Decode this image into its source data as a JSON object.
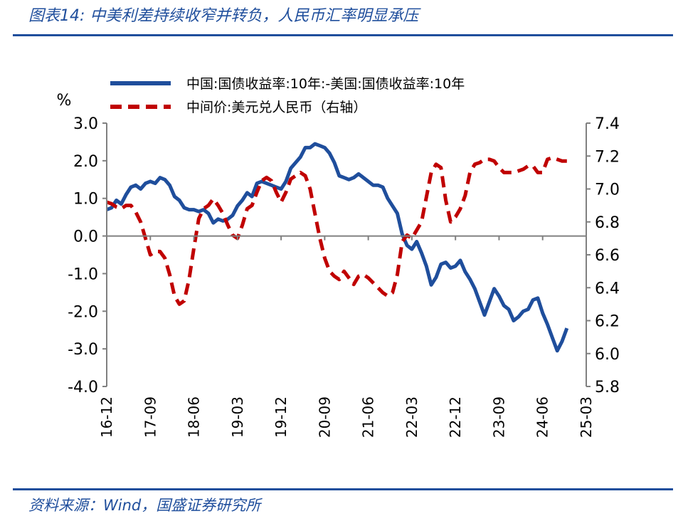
{
  "header": {
    "title": "图表14:  中美利差持续收窄并转负，人民币汇率明显承压"
  },
  "footer": {
    "source": "资料来源：Wind，国盛证券研究所"
  },
  "chart_data": {
    "type": "line",
    "left_unit": "%",
    "y_left": {
      "min": -4.0,
      "max": 3.0,
      "ticks": [
        "3.0",
        "2.0",
        "1.0",
        "0.0",
        "-1.0",
        "-2.0",
        "-3.0",
        "-4.0"
      ]
    },
    "y_right": {
      "min": 5.8,
      "max": 7.4,
      "ticks": [
        "7.4",
        "7.2",
        "7.0",
        "6.8",
        "6.6",
        "6.4",
        "6.2",
        "6.0",
        "5.8"
      ]
    },
    "x_ticks": [
      "16-12",
      "17-09",
      "18-06",
      "19-03",
      "19-12",
      "20-09",
      "21-06",
      "22-03",
      "22-12",
      "23-09",
      "24-06",
      "25-03"
    ],
    "x_range": [
      0,
      99
    ],
    "legend_position": "top",
    "series": [
      {
        "name": "中国:国债收益率:10年:-美国:国债收益率:10年",
        "axis": "left",
        "color": "#1f4e9c",
        "style": "solid",
        "points": [
          [
            0,
            0.7
          ],
          [
            1,
            0.75
          ],
          [
            2,
            0.95
          ],
          [
            3,
            0.85
          ],
          [
            4,
            1.1
          ],
          [
            5,
            1.3
          ],
          [
            6,
            1.35
          ],
          [
            7,
            1.25
          ],
          [
            8,
            1.4
          ],
          [
            9,
            1.45
          ],
          [
            10,
            1.4
          ],
          [
            11,
            1.55
          ],
          [
            12,
            1.5
          ],
          [
            13,
            1.35
          ],
          [
            14,
            1.05
          ],
          [
            15,
            0.95
          ],
          [
            16,
            0.75
          ],
          [
            17,
            0.7
          ],
          [
            18,
            0.7
          ],
          [
            19,
            0.65
          ],
          [
            20,
            0.7
          ],
          [
            21,
            0.6
          ],
          [
            22,
            0.35
          ],
          [
            23,
            0.45
          ],
          [
            24,
            0.4
          ],
          [
            25,
            0.45
          ],
          [
            26,
            0.55
          ],
          [
            27,
            0.8
          ],
          [
            28,
            0.95
          ],
          [
            29,
            1.15
          ],
          [
            30,
            1.05
          ],
          [
            31,
            1.4
          ],
          [
            32,
            1.45
          ],
          [
            33,
            1.4
          ],
          [
            34,
            1.35
          ],
          [
            35,
            1.3
          ],
          [
            36,
            1.25
          ],
          [
            37,
            1.45
          ],
          [
            38,
            1.8
          ],
          [
            39,
            1.95
          ],
          [
            40,
            2.1
          ],
          [
            41,
            2.35
          ],
          [
            42,
            2.35
          ],
          [
            43,
            2.45
          ],
          [
            44,
            2.4
          ],
          [
            45,
            2.35
          ],
          [
            46,
            2.2
          ],
          [
            47,
            1.95
          ],
          [
            48,
            1.6
          ],
          [
            49,
            1.55
          ],
          [
            50,
            1.5
          ],
          [
            51,
            1.55
          ],
          [
            52,
            1.65
          ],
          [
            53,
            1.55
          ],
          [
            54,
            1.45
          ],
          [
            55,
            1.35
          ],
          [
            56,
            1.35
          ],
          [
            57,
            1.3
          ],
          [
            58,
            1.0
          ],
          [
            59,
            0.8
          ],
          [
            60,
            0.6
          ],
          [
            61,
            0.05
          ],
          [
            62,
            -0.25
          ],
          [
            63,
            -0.35
          ],
          [
            64,
            -0.15
          ],
          [
            65,
            -0.45
          ],
          [
            66,
            -0.8
          ],
          [
            67,
            -1.3
          ],
          [
            68,
            -1.1
          ],
          [
            69,
            -0.75
          ],
          [
            70,
            -0.7
          ],
          [
            71,
            -0.85
          ],
          [
            72,
            -0.8
          ],
          [
            73,
            -0.65
          ],
          [
            74,
            -0.95
          ],
          [
            75,
            -1.15
          ],
          [
            76,
            -1.4
          ],
          [
            77,
            -1.75
          ],
          [
            78,
            -2.1
          ],
          [
            79,
            -1.75
          ],
          [
            80,
            -1.4
          ],
          [
            81,
            -1.6
          ],
          [
            82,
            -1.85
          ],
          [
            83,
            -1.95
          ],
          [
            84,
            -2.25
          ],
          [
            85,
            -2.15
          ],
          [
            86,
            -2.0
          ],
          [
            87,
            -1.95
          ],
          [
            88,
            -1.7
          ],
          [
            89,
            -1.65
          ],
          [
            90,
            -2.05
          ],
          [
            91,
            -2.35
          ],
          [
            92,
            -2.7
          ],
          [
            93,
            -3.05
          ],
          [
            94,
            -2.8
          ],
          [
            95,
            -2.45
          ]
        ]
      },
      {
        "name": "中间价:美元兑人民币（右轴）",
        "axis": "right",
        "color": "#c00000",
        "style": "dashed",
        "points": [
          [
            0,
            6.92
          ],
          [
            1,
            6.91
          ],
          [
            2,
            6.89
          ],
          [
            3,
            6.88
          ],
          [
            4,
            6.9
          ],
          [
            5,
            6.9
          ],
          [
            6,
            6.86
          ],
          [
            7,
            6.8
          ],
          [
            8,
            6.7
          ],
          [
            9,
            6.6
          ],
          [
            10,
            6.62
          ],
          [
            11,
            6.62
          ],
          [
            12,
            6.58
          ],
          [
            13,
            6.48
          ],
          [
            14,
            6.35
          ],
          [
            15,
            6.3
          ],
          [
            16,
            6.32
          ],
          [
            17,
            6.45
          ],
          [
            18,
            6.64
          ],
          [
            19,
            6.82
          ],
          [
            20,
            6.88
          ],
          [
            21,
            6.9
          ],
          [
            22,
            6.94
          ],
          [
            23,
            6.9
          ],
          [
            24,
            6.85
          ],
          [
            25,
            6.78
          ],
          [
            26,
            6.72
          ],
          [
            27,
            6.7
          ],
          [
            28,
            6.78
          ],
          [
            29,
            6.88
          ],
          [
            30,
            6.9
          ],
          [
            31,
            6.98
          ],
          [
            32,
            7.05
          ],
          [
            33,
            7.07
          ],
          [
            34,
            7.05
          ],
          [
            35,
            6.98
          ],
          [
            36,
            6.92
          ],
          [
            37,
            6.98
          ],
          [
            38,
            7.06
          ],
          [
            39,
            7.08
          ],
          [
            40,
            7.1
          ],
          [
            41,
            7.08
          ],
          [
            42,
            7.0
          ],
          [
            43,
            6.85
          ],
          [
            44,
            6.7
          ],
          [
            45,
            6.58
          ],
          [
            46,
            6.5
          ],
          [
            47,
            6.47
          ],
          [
            48,
            6.45
          ],
          [
            49,
            6.5
          ],
          [
            50,
            6.46
          ],
          [
            51,
            6.42
          ],
          [
            52,
            6.47
          ],
          [
            53,
            6.48
          ],
          [
            54,
            6.46
          ],
          [
            55,
            6.43
          ],
          [
            56,
            6.4
          ],
          [
            57,
            6.37
          ],
          [
            58,
            6.35
          ],
          [
            59,
            6.37
          ],
          [
            60,
            6.48
          ],
          [
            61,
            6.68
          ],
          [
            62,
            6.72
          ],
          [
            63,
            6.7
          ],
          [
            64,
            6.75
          ],
          [
            65,
            6.8
          ],
          [
            66,
            6.95
          ],
          [
            67,
            7.1
          ],
          [
            68,
            7.15
          ],
          [
            69,
            7.13
          ],
          [
            70,
            6.93
          ],
          [
            71,
            6.8
          ],
          [
            72,
            6.83
          ],
          [
            73,
            6.88
          ],
          [
            74,
            6.96
          ],
          [
            75,
            7.1
          ],
          [
            76,
            7.15
          ],
          [
            77,
            7.16
          ],
          [
            78,
            7.18
          ],
          [
            79,
            7.18
          ],
          [
            80,
            7.17
          ],
          [
            81,
            7.13
          ],
          [
            82,
            7.1
          ],
          [
            83,
            7.1
          ],
          [
            84,
            7.1
          ],
          [
            85,
            7.11
          ],
          [
            86,
            7.12
          ],
          [
            87,
            7.14
          ],
          [
            88,
            7.14
          ],
          [
            89,
            7.1
          ],
          [
            90,
            7.1
          ],
          [
            91,
            7.18
          ],
          [
            92,
            7.19
          ],
          [
            93,
            7.18
          ],
          [
            94,
            7.17
          ],
          [
            95,
            7.17
          ]
        ]
      }
    ]
  }
}
